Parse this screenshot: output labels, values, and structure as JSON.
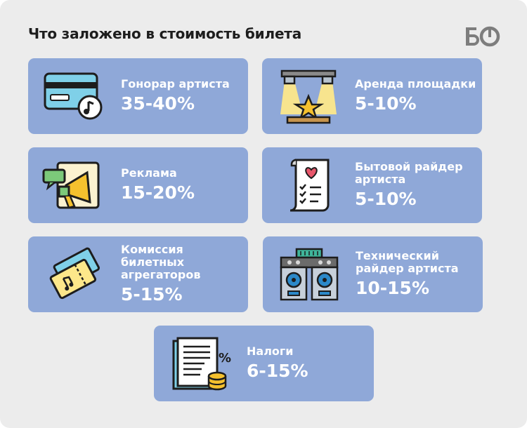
{
  "title": "Что заложено в стоимость билета",
  "logo": "БО",
  "items": [
    {
      "label": "Гонорар артиста",
      "value": "35-40%",
      "icon": "credit-card-music-icon"
    },
    {
      "label": "Аренда площадки",
      "value": "5-10%",
      "icon": "stage-spotlight-icon"
    },
    {
      "label": "Реклама",
      "value": "15-20%",
      "icon": "megaphone-icon"
    },
    {
      "label": "Бытовой райдер артиста",
      "value": "5-10%",
      "icon": "scroll-checklist-icon"
    },
    {
      "label": "Комиссия билетных агрегаторов",
      "value": "5-15%",
      "icon": "tickets-icon"
    },
    {
      "label": "Технический райдер артиста",
      "value": "10-15%",
      "icon": "speakers-icon"
    },
    {
      "label": "Налоги",
      "value": "6-15%",
      "icon": "document-coins-icon"
    }
  ],
  "colors": {
    "card": "#8fa8d8",
    "background": "#ececec",
    "text": "#1d1d1d"
  }
}
